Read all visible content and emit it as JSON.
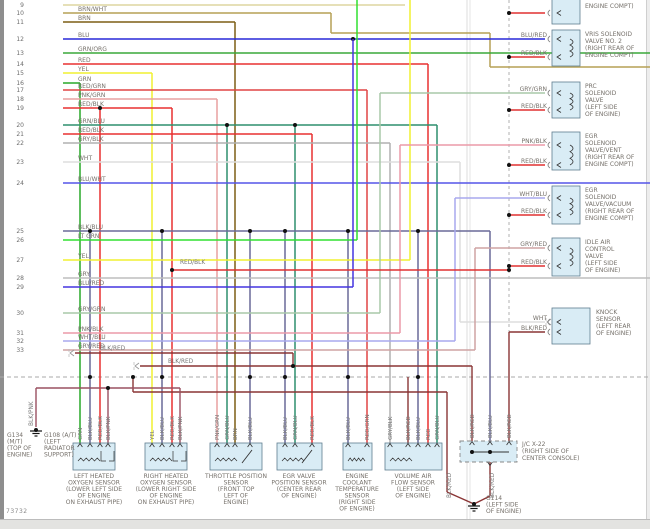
{
  "page": {
    "doc_number": "73732"
  },
  "colors": {
    "red": "#e03030",
    "blkred": "#8a3535",
    "blkpnk": "#9a5060",
    "box_fill": "#d9ecf5",
    "box_stroke": "#5f7d8e",
    "label_text": "#75706a",
    "dash_line": "#aaaaaa"
  },
  "left_rows": [
    {
      "num": "9",
      "label": "",
      "color": "#ddd6a0"
    },
    {
      "num": "10",
      "label": "BRN/WHT",
      "color": "#b5a055"
    },
    {
      "num": "11",
      "label": "BRN",
      "color": "#7d5f15"
    },
    {
      "num": "12",
      "label": "BLU",
      "color": "#2828d8"
    },
    {
      "num": "13",
      "label": "GRN/ORG",
      "color": "#3aa83a"
    },
    {
      "num": "14",
      "label": "RED",
      "color": "#e83030"
    },
    {
      "num": "15",
      "label": "YEL",
      "color": "#f0f030"
    },
    {
      "num": "16",
      "label": "GRN",
      "color": "#28a828"
    },
    {
      "num": "17",
      "label": "RED/GRN",
      "color": "#e04545"
    },
    {
      "num": "18",
      "label": "PNK/GRN",
      "color": "#e8a0a0"
    },
    {
      "num": "19",
      "label": "RED/BLK",
      "color": "#e83030"
    },
    {
      "num": "20",
      "label": "GRN/BLU",
      "color": "#2e8f6e"
    },
    {
      "num": "21",
      "label": "RED/BLK",
      "color": "#e83030"
    },
    {
      "num": "22",
      "label": "GRY/BLK",
      "color": "#b0b0b0"
    },
    {
      "num": "23",
      "label": "WHT",
      "color": "#dedede"
    },
    {
      "num": "24",
      "label": "BLU/WHT",
      "color": "#5555e8"
    },
    {
      "num": "25",
      "label": "BLK/BLU",
      "color": "#6a6a98"
    },
    {
      "num": "26",
      "label": "LT GRN",
      "color": "#30e030"
    },
    {
      "num": "27",
      "label": "YEL",
      "color": "#f0f030"
    },
    {
      "num": "28",
      "label": "GRY",
      "color": "#bdbdbd"
    },
    {
      "num": "29",
      "label": "BLU/RED",
      "color": "#4535e0"
    },
    {
      "num": "30",
      "label": "GRY/GRN",
      "color": "#a8c8a8"
    },
    {
      "num": "31",
      "label": "PNK/BLK",
      "color": "#eb9aa8"
    },
    {
      "num": "32",
      "label": "WHT/BLU",
      "color": "#a8a8ee"
    },
    {
      "num": "33",
      "label": "GRY/RED",
      "color": "#cfa3a3"
    }
  ],
  "right_components": [
    {
      "name": "partial-component-top",
      "lines": [
        "ENGINE COMPT)"
      ],
      "wires": [
        {
          "label": "",
          "color": "#e83030"
        }
      ]
    },
    {
      "name": "vris-solenoid-valve-2",
      "lines": [
        "VRIS SOLENOID",
        "VALVE NO. 2",
        "(RIGHT REAR OF",
        "ENGINE COMPT)"
      ],
      "wires": [
        {
          "label": "BLU/RED",
          "color": "#4535e0"
        },
        {
          "label": "RED/BLK",
          "color": "#e83030"
        }
      ]
    },
    {
      "name": "prc-solenoid-valve",
      "lines": [
        "PRC",
        "SOLENOID",
        "VALVE",
        "(LEFT SIDE",
        "OF ENGINE)"
      ],
      "wires": [
        {
          "label": "GRY/GRN",
          "color": "#a8c8a8"
        },
        {
          "label": "RED/BLK",
          "color": "#e83030"
        }
      ]
    },
    {
      "name": "egr-solenoid-valve-vent",
      "lines": [
        "EGR",
        "SOLENOID",
        "VALVE/VENT",
        "(RIGHT REAR OF",
        "ENGINE COMPT)"
      ],
      "wires": [
        {
          "label": "PNK/BLK",
          "color": "#eb9aa8"
        },
        {
          "label": "RED/BLK",
          "color": "#e83030"
        }
      ]
    },
    {
      "name": "egr-solenoid-valve-vacuum",
      "lines": [
        "EGR",
        "SOLENOID",
        "VALVE/VACUUM",
        "(RIGHT REAR OF",
        "ENGINE COMPT)"
      ],
      "wires": [
        {
          "label": "WHT/BLU",
          "color": "#a8a8ee"
        },
        {
          "label": "RED/BLK",
          "color": "#e83030"
        }
      ]
    },
    {
      "name": "idle-air-control-valve",
      "lines": [
        "IDLE AIR",
        "CONTROL",
        "VALVE",
        "(LEFT SIDE",
        "OF ENGINE)"
      ],
      "wires": [
        {
          "label": "GRY/RED",
          "color": "#cfa3a3"
        },
        {
          "label": "RED/BLK",
          "color": "#e83030"
        }
      ]
    },
    {
      "name": "knock-sensor",
      "lines": [
        "KNOCK",
        "SENSOR",
        "(LEFT REAR",
        "OF ENGINE)"
      ],
      "wires": [
        {
          "label": "WHT",
          "color": "#dedede"
        },
        {
          "label": "BLK/RED",
          "color": "#8a3535"
        }
      ]
    }
  ],
  "bottom_components": [
    {
      "name": "left-heated-oxygen-sensor",
      "lines": [
        "LEFT HEATED",
        "OXYGEN SENSOR",
        "(LOWER LEFT SIDE",
        "OF ENGINE",
        "ON EXHAUST PIPE)"
      ],
      "wires": [
        {
          "label": "GRN",
          "color": "#28a828"
        },
        {
          "label": "BLK/BLU",
          "color": "#6a6a98"
        },
        {
          "label": "RED/BLK",
          "color": "#e83030"
        },
        {
          "label": "BLK/PNK",
          "color": "#9a5060"
        }
      ]
    },
    {
      "name": "right-heated-oxygen-sensor",
      "lines": [
        "RIGHT HEATED",
        "OXYGEN SENSOR",
        "(LOWER RIGHT SIDE",
        "OF ENGINE",
        "ON EXHAUST PIPE)"
      ],
      "wires": [
        {
          "label": "YEL",
          "color": "#f0f030"
        },
        {
          "label": "BLK/BLU",
          "color": "#6a6a98"
        },
        {
          "label": "RED/BLK",
          "color": "#e83030"
        },
        {
          "label": "BLK/PNK",
          "color": "#9a5060"
        }
      ]
    },
    {
      "name": "throttle-position-sensor",
      "lines": [
        "THROTTLE POSITION",
        "SENSOR",
        "(FRONT TOP",
        "LEFT OF",
        "ENGINE)"
      ],
      "wires": [
        {
          "label": "PNK/GRN",
          "color": "#e8a0a0"
        },
        {
          "label": "GRN/BLU",
          "color": "#2e8f6e"
        },
        {
          "label": "BRN",
          "color": "#7d5f15"
        },
        {
          "label": "BLK/BLU",
          "color": "#6a6a98"
        }
      ]
    },
    {
      "name": "egr-valve-position-sensor",
      "lines": [
        "EGR VALVE",
        "POSITION SENSOR",
        "(CENTER REAR",
        "OF ENGINE)"
      ],
      "wires": [
        {
          "label": "BLK/BLU",
          "color": "#6a6a98"
        },
        {
          "label": "GRN/BLU",
          "color": "#2e8f6e"
        },
        {
          "label": "RED/BLK",
          "color": "#e83030"
        }
      ]
    },
    {
      "name": "engine-coolant-temperature-sensor",
      "lines": [
        "ENGINE",
        "COOLANT",
        "TEMPERATURE",
        "SENSOR",
        "(RIGHT SIDE",
        "OF ENGINE)"
      ],
      "wires": [
        {
          "label": "BLK/BLU",
          "color": "#6a6a98"
        },
        {
          "label": "RED/GRN",
          "color": "#e04545"
        }
      ]
    },
    {
      "name": "volume-air-flow-sensor",
      "lines": [
        "VOLUME AIR",
        "FLOW SENSOR",
        "(LEFT SIDE",
        "OF ENGINE)"
      ],
      "wires": [
        {
          "label": "GRY/BLK",
          "color": "#b0b0b0"
        },
        {
          "label": "BLK/RED",
          "color": "#8a3535"
        },
        {
          "label": "BLK/BLU",
          "color": "#6a6a98"
        },
        {
          "label": "RED",
          "color": "#e83030"
        },
        {
          "label": "GRN/BLU",
          "color": "#2e8f6e"
        }
      ]
    }
  ],
  "junction": {
    "name": "junction-connector-x22",
    "lines": [
      "J/C X-22",
      "(RIGHT SIDE OF",
      "CENTER CONSOLE)"
    ],
    "wires": [
      {
        "label": "BLK/RED",
        "color": "#8a3535"
      },
      {
        "label": "BLK/BLU",
        "color": "#6a6a98"
      },
      {
        "label": "BLK/RED",
        "color": "#8a3535"
      }
    ],
    "bottom_wire": {
      "label": "BLK/RED",
      "color": "#8a3535"
    }
  },
  "grounds": [
    {
      "name": "ground-g134",
      "lines": [
        "G134",
        "(M/T)",
        "(TOP OF",
        "ENGINE)"
      ]
    },
    {
      "name": "ground-g108",
      "lines": [
        "G108 (A/T)",
        "(LEFT",
        "RADIATOR",
        "SUPPORT)"
      ]
    },
    {
      "name": "ground-g114",
      "lines": [
        "G114",
        "(LEFT SIDE",
        "OF ENGINE)"
      ]
    }
  ],
  "wire_tags": [
    {
      "text": "RED/BLK"
    },
    {
      "text": "BLK/RED"
    },
    {
      "text": "BLK/RED"
    },
    {
      "text": "BLK/PNK"
    },
    {
      "text": "BLK/RED"
    },
    {
      "text": "BLK/RED"
    }
  ]
}
